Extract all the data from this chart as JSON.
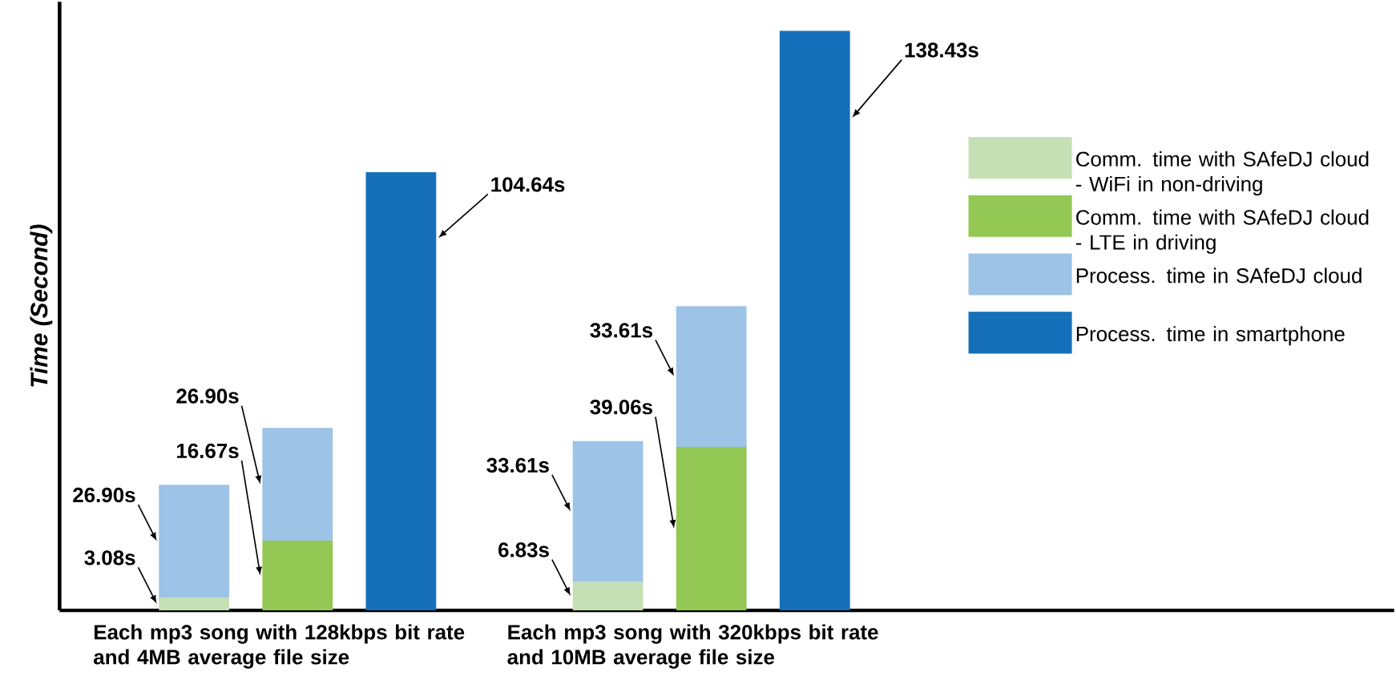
{
  "chart_data": {
    "type": "bar",
    "stacked": true,
    "ylabel": "Time (Second)",
    "legend": "right",
    "categories": [
      null,
      "Each mp3 song with 128kbps bit rate and 4MB average file size",
      null,
      null,
      null,
      "Each mp3 song with 320kbps bit rate and 10MB average file size",
      null
    ],
    "series": [
      {
        "name": "Comm. time with SAfeDJ cloud - WiFi in non-driving",
        "color": "#c5e0b4",
        "values": [
          3.08,
          null,
          null,
          null,
          6.83,
          null,
          null
        ],
        "value_labels": [
          "3.08s",
          null,
          null,
          null,
          "6.83s",
          null,
          null
        ]
      },
      {
        "name": "Comm. time with SAfeDJ cloud - LTE in driving",
        "color": "#92c853",
        "values": [
          null,
          16.67,
          null,
          null,
          null,
          39.06,
          null
        ],
        "value_labels": [
          null,
          "16.67s",
          null,
          null,
          null,
          "39.06s",
          null
        ]
      },
      {
        "name": "Process. time in SAfeDJ cloud",
        "color": "#9dc3e6",
        "values": [
          26.9,
          26.9,
          null,
          null,
          33.61,
          33.61,
          null
        ],
        "value_labels": [
          "26.90s",
          "26.90s",
          null,
          null,
          "33.61s",
          "33.61s",
          null
        ]
      },
      {
        "name": "Process. time in smartphone",
        "color": "#1670b9",
        "values": [
          null,
          null,
          104.64,
          null,
          null,
          null,
          138.43
        ],
        "value_labels": [
          null,
          null,
          "104.64s",
          null,
          null,
          null,
          "138.43s"
        ]
      }
    ]
  }
}
